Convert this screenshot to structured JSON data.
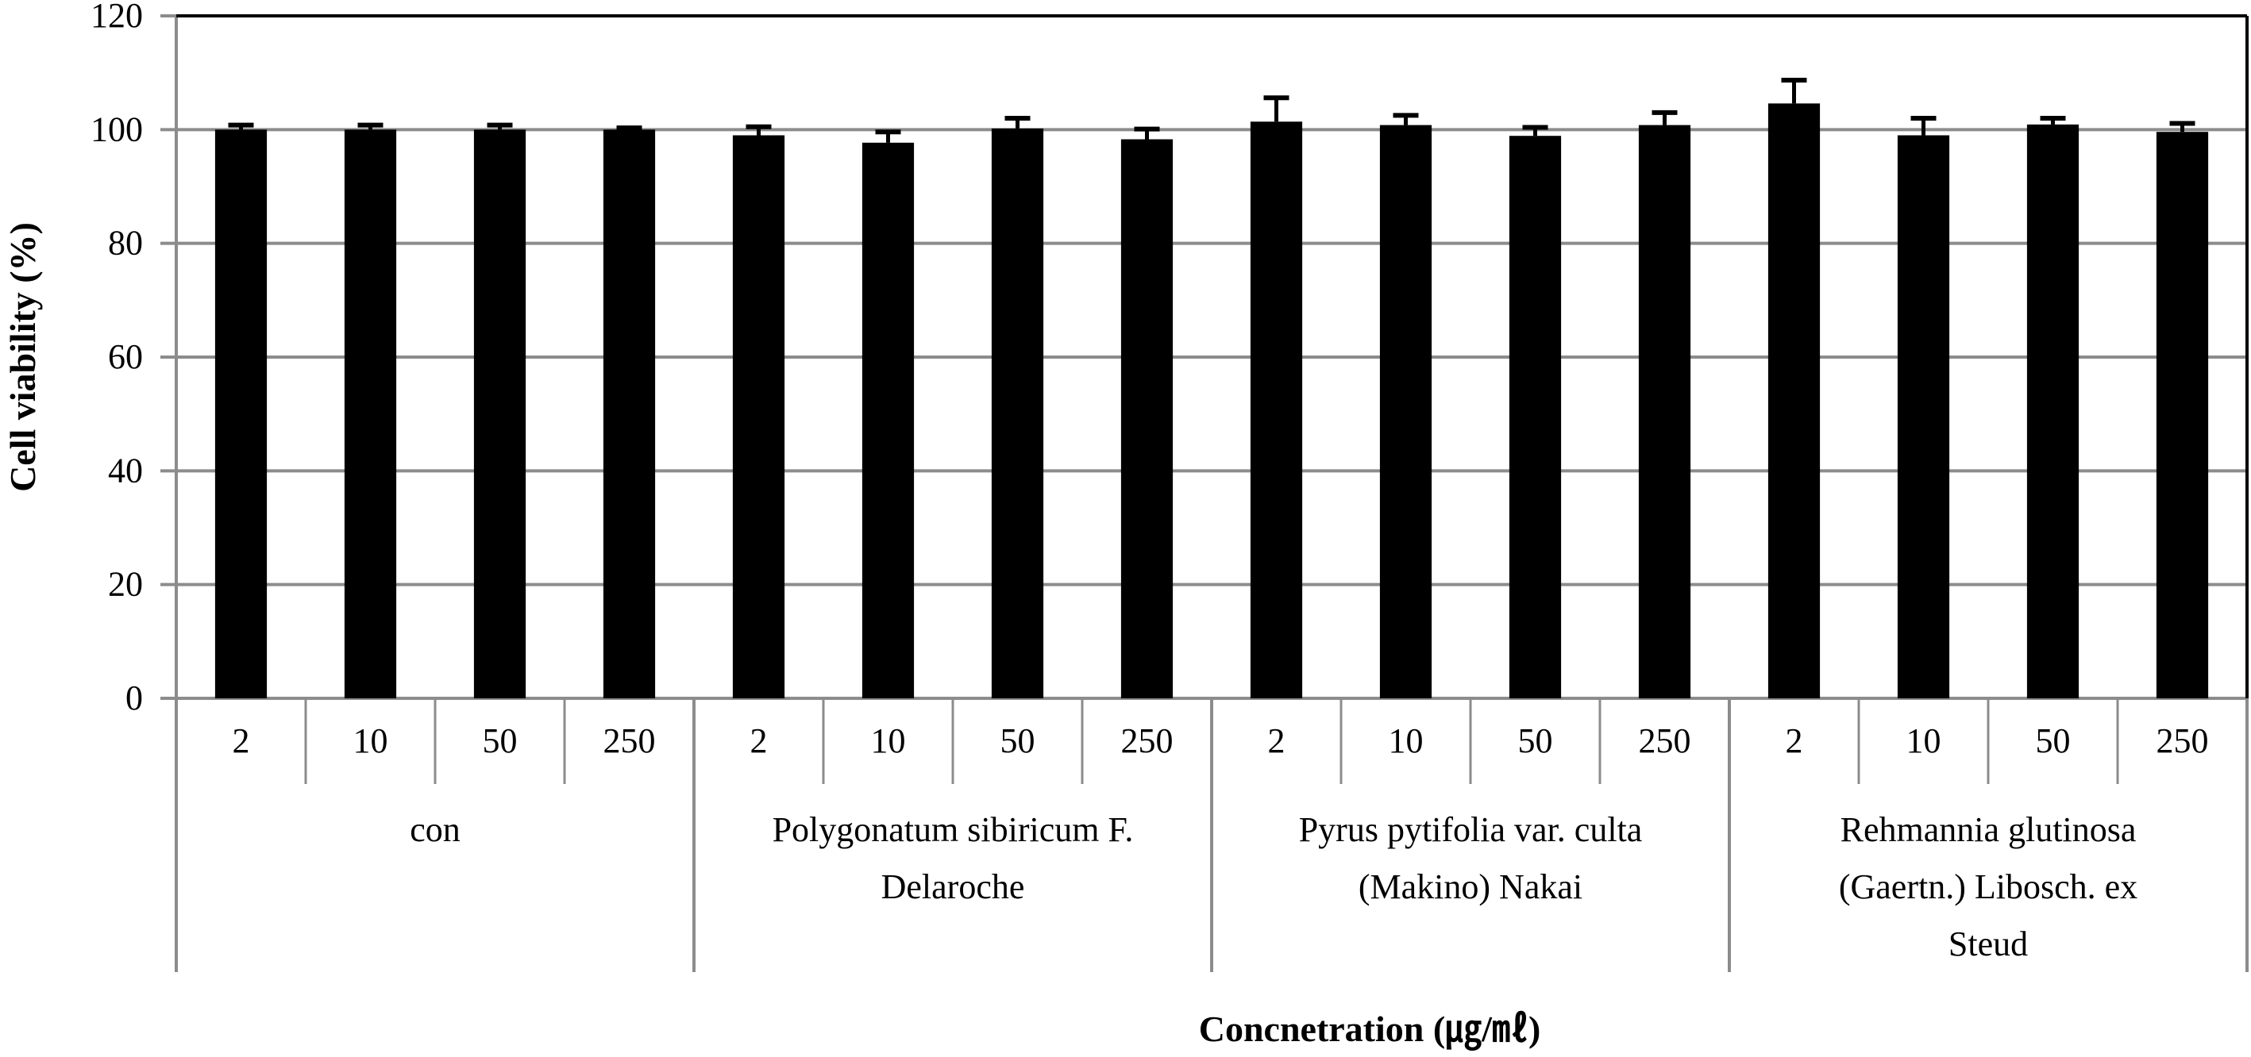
{
  "chart_data": {
    "type": "bar",
    "title": "",
    "xlabel": "Concnetration (㎍/㎖)",
    "ylabel": "Cell viability (%)",
    "ylim": [
      0,
      120
    ],
    "yticks": [
      0,
      20,
      40,
      60,
      80,
      100,
      120
    ],
    "grid": true,
    "legend": null,
    "groups": [
      {
        "name": "con",
        "lines": [
          "con"
        ]
      },
      {
        "name": "Polygonatum sibiricum F. Delaroche",
        "lines": [
          "Polygonatum  sibiricum F.",
          "Delaroche"
        ]
      },
      {
        "name": "Pyrus pytifolia var. culta (Makino) Nakai",
        "lines": [
          "Pyrus  pytifolia var. culta",
          "(Makino) Nakai"
        ]
      },
      {
        "name": "Rehmannia glutinosa (Gaertn.) Libosch. ex Steud",
        "lines": [
          "Rehmannia  glutinosa",
          "(Gaertn.) Libosch. ex",
          "Steud"
        ]
      }
    ],
    "categories": [
      "2",
      "10",
      "50",
      "250",
      "2",
      "10",
      "50",
      "250",
      "2",
      "10",
      "50",
      "250",
      "2",
      "10",
      "50",
      "250"
    ],
    "series": [
      {
        "name": "Cell viability",
        "values": [
          100.0,
          100.0,
          100.0,
          100.0,
          99.0,
          97.7,
          100.2,
          98.3,
          101.4,
          100.8,
          98.9,
          100.8,
          104.6,
          99.0,
          100.9,
          99.6
        ],
        "error": [
          0.8,
          0.8,
          0.8,
          0.3,
          1.5,
          1.9,
          1.8,
          1.8,
          4.2,
          1.7,
          1.5,
          2.2,
          4.1,
          3.0,
          1.1,
          1.5
        ]
      }
    ],
    "colors": {
      "bar": "#000000",
      "grid": "#8c8c8c",
      "frame": "#000000"
    }
  }
}
